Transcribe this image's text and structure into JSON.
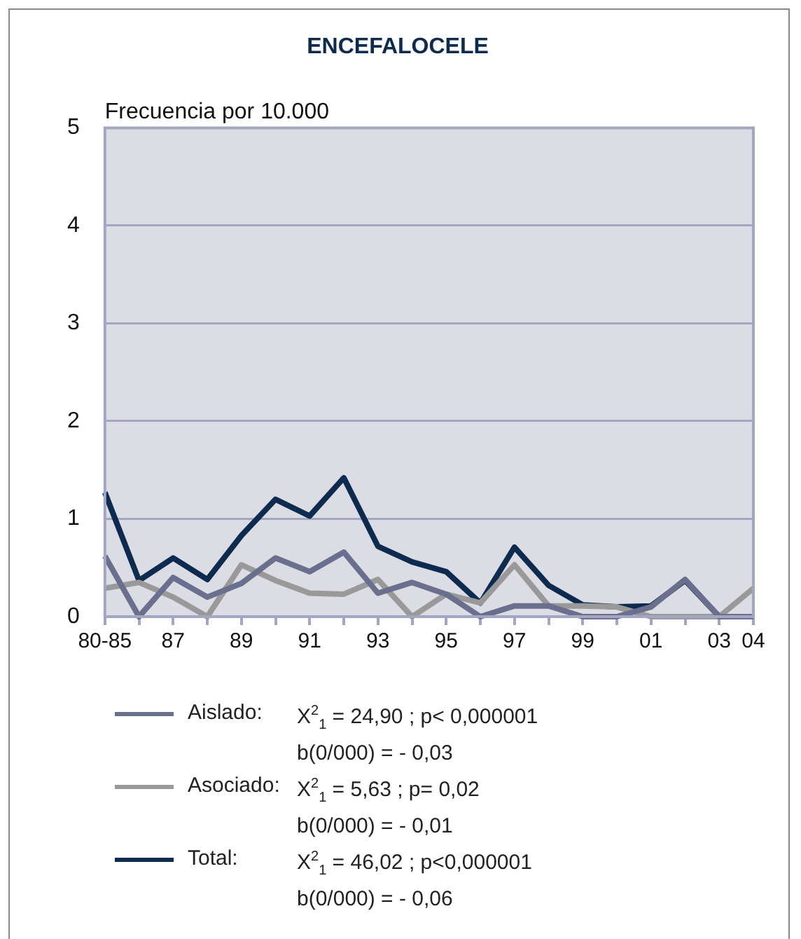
{
  "chart_data": {
    "type": "line",
    "title": "ENCEFALOCELE",
    "ylabel": "Frecuencia por 10.000",
    "categories": [
      "80-85",
      null,
      "87",
      null,
      "89",
      null,
      "91",
      null,
      "93",
      null,
      "95",
      null,
      "97",
      null,
      "99",
      null,
      "01",
      null,
      "03",
      "04"
    ],
    "series": [
      {
        "name": "Aislado:",
        "color": "#6b6f8e",
        "values": [
          0.62,
          0,
          0.4,
          0.2,
          0.34,
          0.6,
          0.46,
          0.66,
          0.24,
          0.35,
          0.23,
          0,
          0.11,
          0.11,
          0,
          0,
          0.1,
          0.38,
          0,
          0
        ]
      },
      {
        "name": "Asociado:",
        "color": "#999999",
        "values": [
          0.29,
          0.35,
          0.2,
          0,
          0.53,
          0.37,
          0.24,
          0.23,
          0.38,
          0,
          0.23,
          0.14,
          0.53,
          0.11,
          0.11,
          0.1,
          0,
          0,
          0,
          0.29
        ]
      },
      {
        "name": "Total:",
        "color": "#0d2a4f",
        "values": [
          1.27,
          0.37,
          0.6,
          0.38,
          0.83,
          1.2,
          1.03,
          1.42,
          0.72,
          0.56,
          0.46,
          0.14,
          0.71,
          0.32,
          0.12,
          0.1,
          0.11,
          0.37,
          0,
          null
        ]
      }
    ],
    "annotations": [
      "X$^{2}$$_{1}$ = 24,90 ;  p< 0,000001",
      "b(0/000) = - 0,03",
      "X$^{2}$$_{1}$ = 5,63 ;  p= 0,02",
      "b(0/000) = - 0,01",
      "X$^{2}$$_{1}$ = 46,02 ;  p<0,000001",
      "b(0/000) = - 0,06"
    ],
    "ylim": [
      0,
      5
    ],
    "yticks": [
      0,
      1,
      2,
      3,
      4,
      5
    ],
    "grid": "y",
    "legend": "bottom",
    "marker": "none",
    "line_style": "solid"
  }
}
